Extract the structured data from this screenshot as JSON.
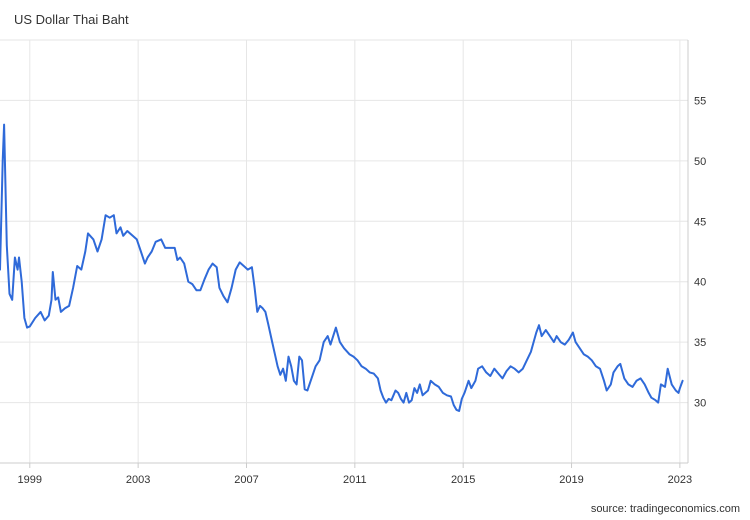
{
  "title": "US Dollar Thai Baht",
  "source": "source: tradingeconomics.com",
  "colors": {
    "line": "#2f6ad9",
    "grid": "#e6e6e6",
    "text": "#333333",
    "axis": "#cccccc"
  },
  "chart_data": {
    "type": "line",
    "title": "US Dollar Thai Baht",
    "xlabel": "",
    "ylabel": "",
    "xlim": [
      1997.9,
      2023.3
    ],
    "ylim": [
      25,
      60
    ],
    "x_ticks": [
      "1999",
      "2003",
      "2007",
      "2011",
      "2015",
      "2019",
      "2023"
    ],
    "y_ticks": [
      30,
      35,
      40,
      45,
      50,
      55
    ],
    "y_axis_position": "right",
    "grid": true,
    "legend": "none",
    "series": [
      {
        "points": [
          [
            1997.9,
            41.0
          ],
          [
            1998.0,
            50.0
          ],
          [
            1998.05,
            53.0
          ],
          [
            1998.15,
            43.0
          ],
          [
            1998.25,
            39.0
          ],
          [
            1998.35,
            38.5
          ],
          [
            1998.45,
            42.0
          ],
          [
            1998.55,
            41.0
          ],
          [
            1998.6,
            42.0
          ],
          [
            1998.7,
            40.0
          ],
          [
            1998.8,
            37.0
          ],
          [
            1998.9,
            36.2
          ],
          [
            1999.0,
            36.3
          ],
          [
            1999.2,
            37.0
          ],
          [
            1999.4,
            37.5
          ],
          [
            1999.55,
            36.8
          ],
          [
            1999.7,
            37.2
          ],
          [
            1999.8,
            38.5
          ],
          [
            1999.85,
            40.8
          ],
          [
            1999.95,
            38.5
          ],
          [
            2000.05,
            38.7
          ],
          [
            2000.15,
            37.5
          ],
          [
            2000.3,
            37.8
          ],
          [
            2000.45,
            38.0
          ],
          [
            2000.6,
            39.5
          ],
          [
            2000.75,
            41.3
          ],
          [
            2000.9,
            41.0
          ],
          [
            2001.05,
            42.5
          ],
          [
            2001.15,
            44.0
          ],
          [
            2001.35,
            43.5
          ],
          [
            2001.5,
            42.5
          ],
          [
            2001.65,
            43.5
          ],
          [
            2001.8,
            45.5
          ],
          [
            2001.95,
            45.3
          ],
          [
            2002.1,
            45.5
          ],
          [
            2002.2,
            44.0
          ],
          [
            2002.35,
            44.5
          ],
          [
            2002.45,
            43.8
          ],
          [
            2002.6,
            44.2
          ],
          [
            2002.8,
            43.8
          ],
          [
            2002.95,
            43.5
          ],
          [
            2003.1,
            42.5
          ],
          [
            2003.25,
            41.5
          ],
          [
            2003.35,
            42.0
          ],
          [
            2003.5,
            42.5
          ],
          [
            2003.65,
            43.3
          ],
          [
            2003.85,
            43.5
          ],
          [
            2004.0,
            42.8
          ],
          [
            2004.2,
            42.8
          ],
          [
            2004.35,
            42.8
          ],
          [
            2004.45,
            41.8
          ],
          [
            2004.55,
            42.0
          ],
          [
            2004.7,
            41.5
          ],
          [
            2004.85,
            40.0
          ],
          [
            2005.0,
            39.8
          ],
          [
            2005.15,
            39.3
          ],
          [
            2005.3,
            39.3
          ],
          [
            2005.45,
            40.2
          ],
          [
            2005.6,
            41.0
          ],
          [
            2005.75,
            41.5
          ],
          [
            2005.9,
            41.2
          ],
          [
            2006.0,
            39.5
          ],
          [
            2006.15,
            38.8
          ],
          [
            2006.3,
            38.3
          ],
          [
            2006.45,
            39.5
          ],
          [
            2006.6,
            41.0
          ],
          [
            2006.75,
            41.6
          ],
          [
            2006.9,
            41.3
          ],
          [
            2007.05,
            41.0
          ],
          [
            2007.2,
            41.2
          ],
          [
            2007.3,
            39.5
          ],
          [
            2007.4,
            37.5
          ],
          [
            2007.5,
            38.0
          ],
          [
            2007.6,
            37.8
          ],
          [
            2007.7,
            37.5
          ],
          [
            2007.8,
            36.5
          ],
          [
            2007.95,
            35.0
          ],
          [
            2008.05,
            34.0
          ],
          [
            2008.15,
            33.0
          ],
          [
            2008.25,
            32.3
          ],
          [
            2008.35,
            32.8
          ],
          [
            2008.45,
            31.8
          ],
          [
            2008.55,
            33.8
          ],
          [
            2008.65,
            33.0
          ],
          [
            2008.75,
            31.8
          ],
          [
            2008.85,
            31.5
          ],
          [
            2008.95,
            33.8
          ],
          [
            2009.05,
            33.5
          ],
          [
            2009.15,
            31.1
          ],
          [
            2009.25,
            31.0
          ],
          [
            2009.4,
            32.0
          ],
          [
            2009.55,
            33.0
          ],
          [
            2009.7,
            33.5
          ],
          [
            2009.85,
            35.0
          ],
          [
            2010.0,
            35.5
          ],
          [
            2010.1,
            34.8
          ],
          [
            2010.2,
            35.5
          ],
          [
            2010.3,
            36.2
          ],
          [
            2010.45,
            35.0
          ],
          [
            2010.6,
            34.5
          ],
          [
            2010.8,
            34.0
          ],
          [
            2010.95,
            33.8
          ],
          [
            2011.1,
            33.5
          ],
          [
            2011.25,
            33.0
          ],
          [
            2011.4,
            32.8
          ],
          [
            2011.55,
            32.5
          ],
          [
            2011.7,
            32.4
          ],
          [
            2011.85,
            32.0
          ],
          [
            2011.95,
            31.0
          ],
          [
            2012.05,
            30.4
          ],
          [
            2012.15,
            30.0
          ],
          [
            2012.25,
            30.3
          ],
          [
            2012.35,
            30.2
          ],
          [
            2012.5,
            31.0
          ],
          [
            2012.6,
            30.8
          ],
          [
            2012.7,
            30.3
          ],
          [
            2012.8,
            30.0
          ],
          [
            2012.9,
            30.8
          ],
          [
            2013.0,
            30.0
          ],
          [
            2013.1,
            30.2
          ],
          [
            2013.2,
            31.2
          ],
          [
            2013.3,
            30.8
          ],
          [
            2013.4,
            31.5
          ],
          [
            2013.5,
            30.6
          ],
          [
            2013.6,
            30.8
          ],
          [
            2013.7,
            31.0
          ],
          [
            2013.8,
            31.8
          ],
          [
            2013.95,
            31.5
          ],
          [
            2014.1,
            31.3
          ],
          [
            2014.25,
            30.8
          ],
          [
            2014.4,
            30.6
          ],
          [
            2014.55,
            30.5
          ],
          [
            2014.65,
            29.8
          ],
          [
            2014.75,
            29.4
          ],
          [
            2014.85,
            29.3
          ],
          [
            2014.95,
            30.3
          ],
          [
            2015.05,
            30.8
          ],
          [
            2015.2,
            31.8
          ],
          [
            2015.3,
            31.2
          ],
          [
            2015.45,
            31.8
          ],
          [
            2015.55,
            32.8
          ],
          [
            2015.7,
            33.0
          ],
          [
            2015.85,
            32.5
          ],
          [
            2016.0,
            32.2
          ],
          [
            2016.15,
            32.8
          ],
          [
            2016.3,
            32.4
          ],
          [
            2016.45,
            32.0
          ],
          [
            2016.6,
            32.6
          ],
          [
            2016.75,
            33.0
          ],
          [
            2016.9,
            32.8
          ],
          [
            2017.05,
            32.5
          ],
          [
            2017.2,
            32.8
          ],
          [
            2017.35,
            33.5
          ],
          [
            2017.5,
            34.2
          ],
          [
            2017.6,
            35.0
          ],
          [
            2017.7,
            35.8
          ],
          [
            2017.8,
            36.4
          ],
          [
            2017.9,
            35.5
          ],
          [
            2018.05,
            36.0
          ],
          [
            2018.2,
            35.5
          ],
          [
            2018.35,
            35.0
          ],
          [
            2018.45,
            35.5
          ],
          [
            2018.6,
            35.0
          ],
          [
            2018.75,
            34.8
          ],
          [
            2018.9,
            35.2
          ],
          [
            2019.05,
            35.8
          ],
          [
            2019.15,
            35.0
          ],
          [
            2019.3,
            34.5
          ],
          [
            2019.45,
            34.0
          ],
          [
            2019.6,
            33.8
          ],
          [
            2019.75,
            33.5
          ],
          [
            2019.9,
            33.0
          ],
          [
            2020.05,
            32.8
          ],
          [
            2020.2,
            31.8
          ],
          [
            2020.3,
            31.0
          ],
          [
            2020.45,
            31.5
          ],
          [
            2020.55,
            32.5
          ],
          [
            2020.7,
            33.0
          ],
          [
            2020.8,
            33.2
          ],
          [
            2020.95,
            32.0
          ],
          [
            2021.1,
            31.5
          ],
          [
            2021.25,
            31.3
          ],
          [
            2021.4,
            31.8
          ],
          [
            2021.55,
            32.0
          ],
          [
            2021.7,
            31.5
          ],
          [
            2021.85,
            30.8
          ],
          [
            2021.95,
            30.4
          ],
          [
            2022.1,
            30.2
          ],
          [
            2022.2,
            30.0
          ],
          [
            2022.3,
            31.5
          ],
          [
            2022.45,
            31.3
          ],
          [
            2022.55,
            32.8
          ],
          [
            2022.7,
            31.5
          ],
          [
            2022.85,
            31.0
          ],
          [
            2022.95,
            30.8
          ],
          [
            2023.0,
            31.2
          ],
          [
            2023.1,
            31.8
          ]
        ]
      }
    ]
  }
}
